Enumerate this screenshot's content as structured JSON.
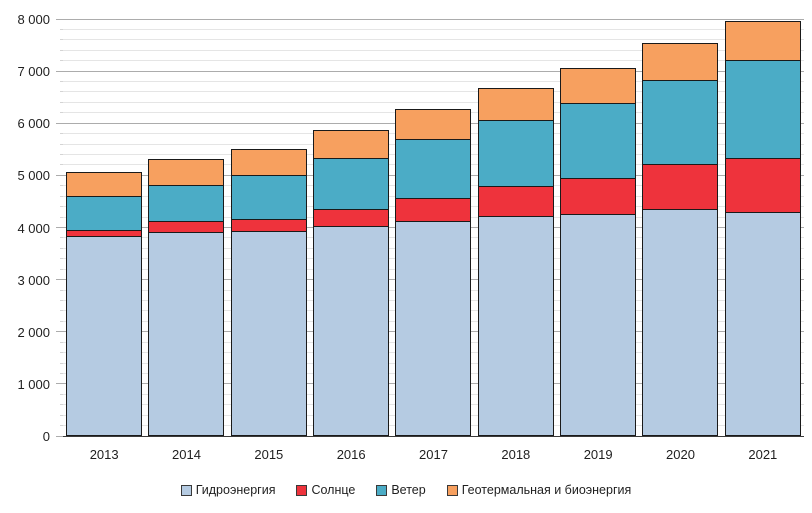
{
  "chart_data": {
    "type": "bar",
    "stacked": true,
    "title": "",
    "xlabel": "",
    "ylabel": "",
    "grid": true,
    "legend_position": "bottom",
    "categories": [
      "2013",
      "2014",
      "2015",
      "2016",
      "2017",
      "2018",
      "2019",
      "2020",
      "2021"
    ],
    "series": [
      {
        "key": "hydro",
        "name": "Гидроэнергия",
        "color": "#B5CBE2",
        "values": [
          3810,
          3900,
          3905,
          4005,
          4110,
          4205,
          4235,
          4345,
          4285
        ]
      },
      {
        "key": "solar",
        "name": "Солнце",
        "color": "#EE333C",
        "values": [
          130,
          200,
          245,
          340,
          430,
          575,
          705,
          850,
          1030
        ]
      },
      {
        "key": "wind",
        "name": "Ветер",
        "color": "#4BACC6",
        "values": [
          640,
          690,
          830,
          975,
          1130,
          1270,
          1430,
          1620,
          1885
        ]
      },
      {
        "key": "geo-bio",
        "name": "Геотермальная и биоэнергия",
        "color": "#F7A05F",
        "values": [
          490,
          520,
          530,
          555,
          610,
          625,
          685,
          720,
          765
        ]
      }
    ],
    "y_axis": {
      "min": 0,
      "max": 8000,
      "major_step": 1000,
      "minor_step": 200,
      "ticks": [
        {
          "value": 0,
          "label": "0"
        },
        {
          "value": 1000,
          "label": "1 000"
        },
        {
          "value": 2000,
          "label": "2 000"
        },
        {
          "value": 3000,
          "label": "3 000"
        },
        {
          "value": 4000,
          "label": "4 000"
        },
        {
          "value": 5000,
          "label": "5 000"
        },
        {
          "value": 6000,
          "label": "6 000"
        },
        {
          "value": 7000,
          "label": "7 000"
        },
        {
          "value": 8000,
          "label": "8 000"
        }
      ]
    },
    "style": {
      "bar_border_color": "#1A1A1A",
      "grid_major_color": "#ACACAC",
      "grid_minor_color": "#E5E5E5",
      "axis_line_color": "#3a3a3a",
      "text_color": "#1F1F1F"
    }
  }
}
